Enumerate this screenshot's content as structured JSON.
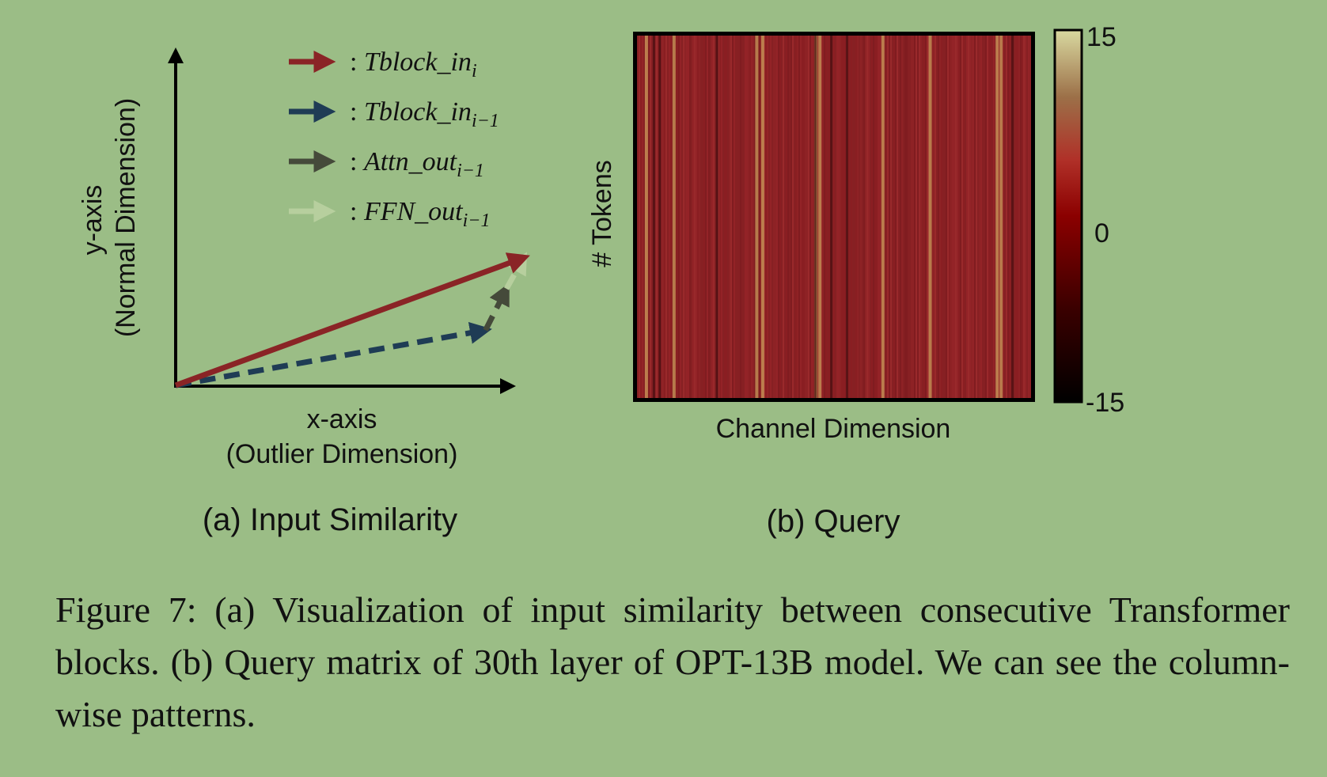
{
  "panel_a": {
    "y_axis_label": "y-axis",
    "y_axis_sublabel": "(Normal Dimension)",
    "x_axis_label": "x-axis",
    "x_axis_sublabel": "(Outlier Dimension)",
    "subcaption": "(a) Input Similarity",
    "legend": [
      {
        "prefix": ": ",
        "main": "Tblock_in",
        "sub": "i",
        "color": "#8a2426"
      },
      {
        "prefix": ": ",
        "main": "Tblock_in",
        "sub": "i−1",
        "color": "#1f3c55"
      },
      {
        "prefix": ": ",
        "main": "Attn_out",
        "sub": "i−1",
        "color": "#454a3a"
      },
      {
        "prefix": ": ",
        "main": "FFN_out",
        "sub": "i−1",
        "color": "#b7cf9e"
      }
    ],
    "vectors": [
      {
        "name": "tblock-in-i",
        "from": [
          0,
          0
        ],
        "to": [
          1.0,
          0.37
        ],
        "style": "solid",
        "color": "#8a2426"
      },
      {
        "name": "tblock-in-i-1",
        "from": [
          0,
          0
        ],
        "to": [
          0.89,
          0.16
        ],
        "style": "dashed",
        "color": "#1f3c55"
      },
      {
        "name": "attn-out-i-1",
        "from": [
          0.89,
          0.16
        ],
        "to": [
          0.95,
          0.28
        ],
        "style": "dashed",
        "color": "#454a3a"
      },
      {
        "name": "ffn-out-i-1",
        "from": [
          0.95,
          0.28
        ],
        "to": [
          1.0,
          0.37
        ],
        "style": "dashed",
        "color": "#b7cf9e"
      }
    ]
  },
  "panel_b": {
    "ylabel": "# Tokens",
    "xlabel": "Channel Dimension",
    "subcaption": "(b) Query",
    "colorbar_ticks": [
      "15",
      "0",
      "-15"
    ]
  },
  "chart_data": {
    "type": "heatmap",
    "title": "(b) Query",
    "xlabel": "Channel Dimension",
    "ylabel": "# Tokens",
    "colorbar": {
      "min": -15,
      "max": 15,
      "ticks": [
        15,
        0,
        -15
      ]
    },
    "colormap": [
      "#000000",
      "#3a0000",
      "#8b0000",
      "#b03028",
      "#9c7048",
      "#d9d9a0"
    ],
    "base_value": 3,
    "bright_columns": [
      0.02,
      0.09,
      0.3,
      0.315,
      0.45,
      0.46,
      0.62,
      0.74,
      0.91,
      0.92
    ],
    "dark_columns": [
      0.04,
      0.055,
      0.2,
      0.45,
      0.49,
      0.53,
      0.95
    ]
  },
  "caption": "Figure 7: (a) Visualization of input similarity between consecutive Transformer blocks. (b) Query matrix of 30th layer of OPT-13B model. We can see the column-wise patterns."
}
